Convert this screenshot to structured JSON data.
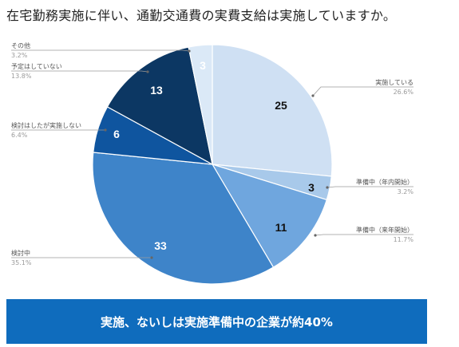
{
  "title": "在宅勤務実施に伴い、通勤交通費の実費支給は実施していますか。",
  "banner": "実施、ないしは実施準備中の企業が約40%",
  "chart_data": {
    "type": "pie",
    "title": "在宅勤務実施に伴い、通勤交通費の実費支給は実施していますか。",
    "start_angle_deg": 0,
    "direction": "clockwise",
    "legend": "none",
    "slices": [
      {
        "label": "実施している",
        "value": 25,
        "percent": "26.6%",
        "color": "#cfe0f3"
      },
      {
        "label": "準備中（年内開始）",
        "value": 3,
        "percent": "3.2%",
        "color": "#a8c9ea"
      },
      {
        "label": "準備中（来年開始）",
        "value": 11,
        "percent": "11.7%",
        "color": "#6fa6de"
      },
      {
        "label": "検討中",
        "value": 33,
        "percent": "35.1%",
        "color": "#3e84c9"
      },
      {
        "label": "検討はしたが実施しない",
        "value": 6,
        "percent": "6.4%",
        "color": "#0f559f"
      },
      {
        "label": "予定はしていない",
        "value": 13,
        "percent": "13.8%",
        "color": "#0c3763"
      },
      {
        "label": "その他",
        "value": 3,
        "percent": "3.2%",
        "color": "#dbe9f7"
      }
    ]
  },
  "colors": {
    "banner_bg": "#0f6cbd",
    "leader_line": "#9a9a9a"
  }
}
